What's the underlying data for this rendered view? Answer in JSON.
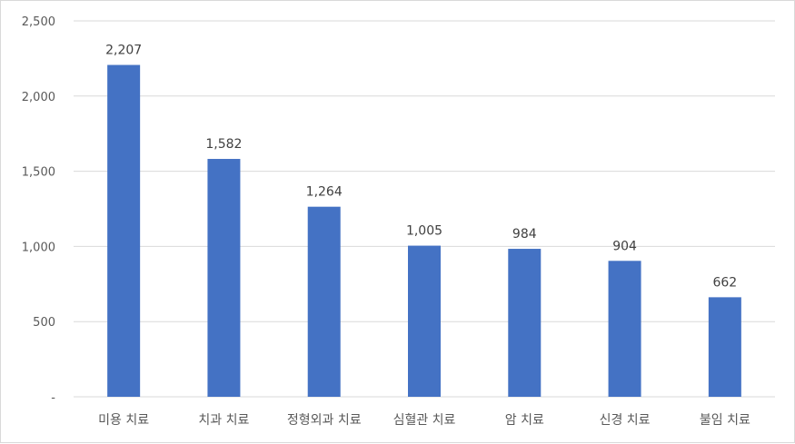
{
  "chart_data": {
    "type": "bar",
    "categories": [
      "미용 치료",
      "치과 치료",
      "정형외과 치료",
      "심혈관 치료",
      "암 치료",
      "신경 치료",
      "불임 치료"
    ],
    "values": [
      2207,
      1582,
      1264,
      1005,
      984,
      904,
      662
    ],
    "data_labels": [
      "2,207",
      "1,582",
      "1,264",
      "1,005",
      "984",
      "904",
      "662"
    ],
    "y_ticks": [
      {
        "value": 0,
        "label": "-"
      },
      {
        "value": 500,
        "label": "500"
      },
      {
        "value": 1000,
        "label": "1,000"
      },
      {
        "value": 1500,
        "label": "1,500"
      },
      {
        "value": 2000,
        "label": "2,000"
      },
      {
        "value": 2500,
        "label": "2,500"
      }
    ],
    "ylim": [
      0,
      2500
    ],
    "grid": true,
    "legend": "none",
    "colors": {
      "bar": "#4472C4",
      "grid": "#d9d9d9",
      "axis_text": "#595959",
      "data_label_text": "#404040"
    }
  }
}
